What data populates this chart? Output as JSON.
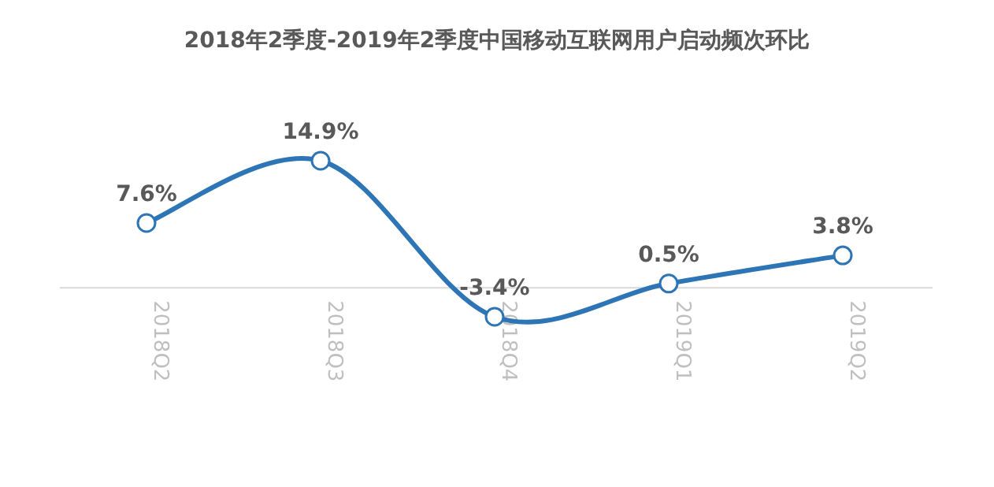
{
  "chart_data": {
    "type": "line",
    "title": "2018年2季度-2019年2季度中国移动互联网用户启动频次环比",
    "categories": [
      "2018Q2",
      "2018Q3",
      "2018Q4",
      "2019Q1",
      "2019Q2"
    ],
    "values": [
      7.6,
      14.9,
      -3.4,
      0.5,
      3.8
    ],
    "value_labels": [
      "7.6%",
      "14.9%",
      "-3.4%",
      "0.5%",
      "3.8%"
    ],
    "color": "#2e75b6",
    "marker": "circle"
  }
}
